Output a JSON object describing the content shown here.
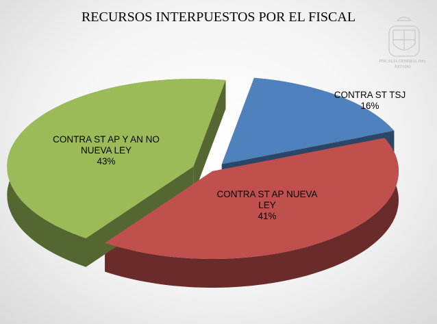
{
  "chart_data": {
    "type": "pie",
    "title": "RECURSOS INTERPUESTOS POR EL FISCAL",
    "logo_text": "FISCALÍA GENERAL DEL ESTADO",
    "categories": [
      "CONTRA ST TSJ",
      "CONTRA ST AP NUEVA LEY",
      "CONTRA ST AP Y AN NO NUEVA LEY"
    ],
    "values": [
      16,
      41,
      43
    ],
    "value_labels": [
      "16%",
      "41%",
      "43%"
    ],
    "colors": [
      "#4f81bd",
      "#c0504d",
      "#9bbb59"
    ]
  }
}
